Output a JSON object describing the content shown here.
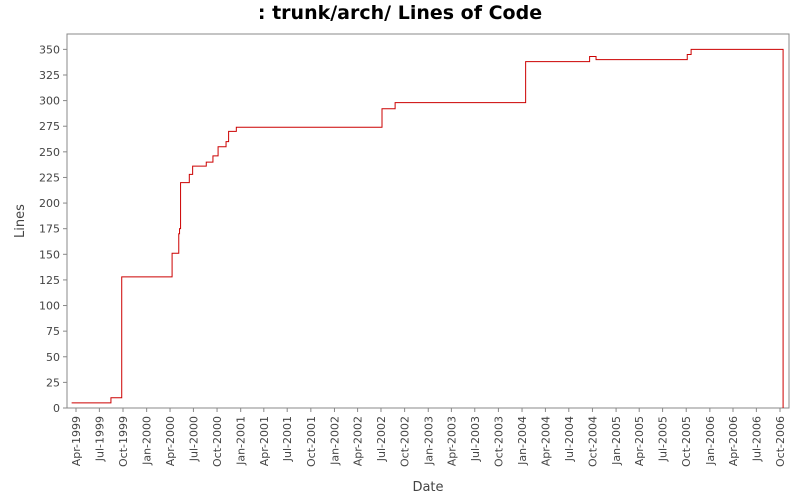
{
  "chart_data": {
    "type": "line",
    "title": ": trunk/arch/ Lines of Code",
    "xlabel": "Date",
    "ylabel": "Lines",
    "xlim": [
      "1999-02-25",
      "2006-11-05"
    ],
    "ylim": [
      0,
      365
    ],
    "grid": false,
    "line_color": "#cc0000",
    "y_ticks": [
      0,
      25,
      50,
      75,
      100,
      125,
      150,
      175,
      200,
      225,
      250,
      275,
      300,
      325,
      350
    ],
    "x_ticks": [
      {
        "date": "1999-04-01",
        "label": "Apr-1999"
      },
      {
        "date": "1999-07-01",
        "label": "Jul-1999"
      },
      {
        "date": "1999-10-01",
        "label": "Oct-1999"
      },
      {
        "date": "2000-01-01",
        "label": "Jan-2000"
      },
      {
        "date": "2000-04-01",
        "label": "Apr-2000"
      },
      {
        "date": "2000-07-01",
        "label": "Jul-2000"
      },
      {
        "date": "2000-10-01",
        "label": "Oct-2000"
      },
      {
        "date": "2001-01-01",
        "label": "Jan-2001"
      },
      {
        "date": "2001-04-01",
        "label": "Apr-2001"
      },
      {
        "date": "2001-07-01",
        "label": "Jul-2001"
      },
      {
        "date": "2001-10-01",
        "label": "Oct-2001"
      },
      {
        "date": "2002-01-01",
        "label": "Jan-2002"
      },
      {
        "date": "2002-04-01",
        "label": "Apr-2002"
      },
      {
        "date": "2002-07-01",
        "label": "Jul-2002"
      },
      {
        "date": "2002-10-01",
        "label": "Oct-2002"
      },
      {
        "date": "2003-01-01",
        "label": "Jan-2003"
      },
      {
        "date": "2003-04-01",
        "label": "Apr-2003"
      },
      {
        "date": "2003-07-01",
        "label": "Jul-2003"
      },
      {
        "date": "2003-10-01",
        "label": "Oct-2003"
      },
      {
        "date": "2004-01-01",
        "label": "Jan-2004"
      },
      {
        "date": "2004-04-01",
        "label": "Apr-2004"
      },
      {
        "date": "2004-07-01",
        "label": "Jul-2004"
      },
      {
        "date": "2004-10-01",
        "label": "Oct-2004"
      },
      {
        "date": "2005-01-01",
        "label": "Jan-2005"
      },
      {
        "date": "2005-04-01",
        "label": "Apr-2005"
      },
      {
        "date": "2005-07-01",
        "label": "Jul-2005"
      },
      {
        "date": "2005-10-01",
        "label": "Oct-2005"
      },
      {
        "date": "2006-01-01",
        "label": "Jan-2006"
      },
      {
        "date": "2006-04-01",
        "label": "Apr-2006"
      },
      {
        "date": "2006-07-01",
        "label": "Jul-2006"
      },
      {
        "date": "2006-10-01",
        "label": "Oct-2006"
      }
    ],
    "series": [
      {
        "step": true,
        "points": [
          [
            "1999-03-15",
            5
          ],
          [
            "1999-08-15",
            10
          ],
          [
            "1999-09-26",
            128
          ],
          [
            "2000-04-09",
            151
          ],
          [
            "2000-05-05",
            170
          ],
          [
            "2000-05-08",
            175
          ],
          [
            "2000-05-12",
            220
          ],
          [
            "2000-06-15",
            228
          ],
          [
            "2000-06-28",
            236
          ],
          [
            "2000-08-20",
            240
          ],
          [
            "2000-09-15",
            246
          ],
          [
            "2000-10-05",
            255
          ],
          [
            "2000-11-05",
            260
          ],
          [
            "2000-11-15",
            270
          ],
          [
            "2000-12-15",
            274
          ],
          [
            "2002-07-05",
            292
          ],
          [
            "2002-08-25",
            298
          ],
          [
            "2004-01-15",
            338
          ],
          [
            "2004-09-20",
            343
          ],
          [
            "2004-10-15",
            340
          ],
          [
            "2005-10-05",
            345
          ],
          [
            "2005-10-20",
            350
          ],
          [
            "2006-10-12",
            350
          ],
          [
            "2006-10-13",
            0
          ]
        ]
      }
    ]
  }
}
